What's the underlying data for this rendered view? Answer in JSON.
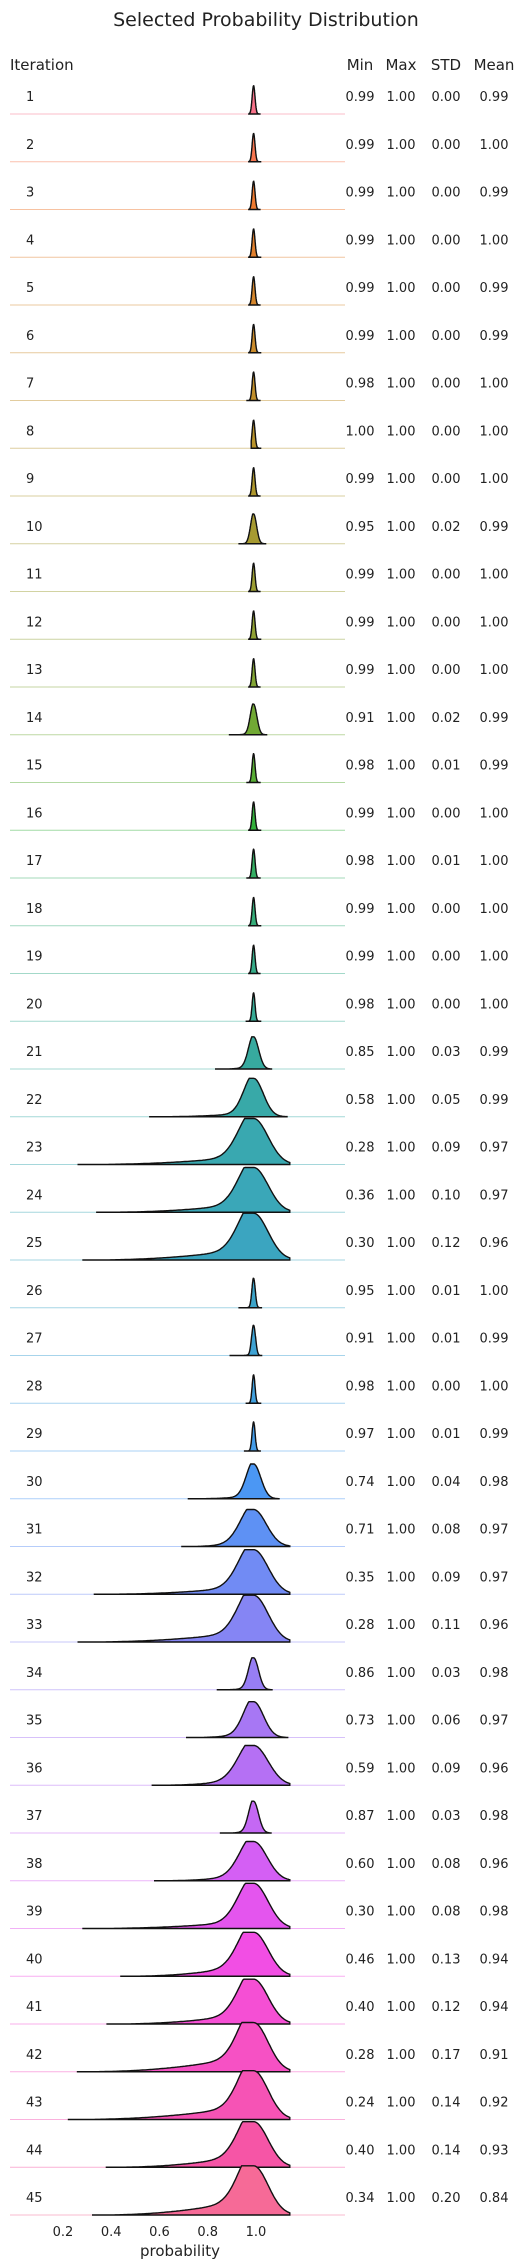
{
  "chart_data": {
    "type": "ridgeline",
    "title": "Selected Probability Distribution",
    "xlabel": "probability",
    "xlim": [
      0.0,
      1.2
    ],
    "xticks": [
      0.2,
      0.4,
      0.6,
      0.8,
      1.0
    ],
    "xtick_labels": [
      "0.2",
      "0.4",
      "0.6",
      "0.8",
      "1.0"
    ],
    "row_header": "Iteration",
    "stat_headers": [
      "Min",
      "Max",
      "STD",
      "Mean"
    ],
    "grid": false,
    "rows": [
      {
        "iteration": "1",
        "min": "0.99",
        "max": "1.00",
        "std": "0.00",
        "mean": "0.99",
        "color": "#f77189"
      },
      {
        "iteration": "2",
        "min": "0.99",
        "max": "1.00",
        "std": "0.00",
        "mean": "1.00",
        "color": "#f7754f"
      },
      {
        "iteration": "3",
        "min": "0.99",
        "max": "1.00",
        "std": "0.00",
        "mean": "0.99",
        "color": "#ee7a30"
      },
      {
        "iteration": "4",
        "min": "0.99",
        "max": "1.00",
        "std": "0.00",
        "mean": "1.00",
        "color": "#e1802e"
      },
      {
        "iteration": "5",
        "min": "0.99",
        "max": "1.00",
        "std": "0.00",
        "mean": "0.99",
        "color": "#d5862c"
      },
      {
        "iteration": "6",
        "min": "0.99",
        "max": "1.00",
        "std": "0.00",
        "mean": "0.99",
        "color": "#cb8b2a"
      },
      {
        "iteration": "7",
        "min": "0.98",
        "max": "1.00",
        "std": "0.00",
        "mean": "1.00",
        "color": "#c18f2b"
      },
      {
        "iteration": "8",
        "min": "1.00",
        "max": "1.00",
        "std": "0.00",
        "mean": "1.00",
        "color": "#b8932c"
      },
      {
        "iteration": "9",
        "min": "0.99",
        "max": "1.00",
        "std": "0.00",
        "mean": "1.00",
        "color": "#ae972d"
      },
      {
        "iteration": "10",
        "min": "0.95",
        "max": "1.00",
        "std": "0.02",
        "mean": "0.99",
        "color": "#a69a31"
      },
      {
        "iteration": "11",
        "min": "0.99",
        "max": "1.00",
        "std": "0.00",
        "mean": "1.00",
        "color": "#9c9e33"
      },
      {
        "iteration": "12",
        "min": "0.99",
        "max": "1.00",
        "std": "0.00",
        "mean": "1.00",
        "color": "#90a133"
      },
      {
        "iteration": "13",
        "min": "0.99",
        "max": "1.00",
        "std": "0.00",
        "mean": "1.00",
        "color": "#82a534"
      },
      {
        "iteration": "14",
        "min": "0.91",
        "max": "1.00",
        "std": "0.02",
        "mean": "0.99",
        "color": "#71a934"
      },
      {
        "iteration": "15",
        "min": "0.98",
        "max": "1.00",
        "std": "0.01",
        "mean": "0.99",
        "color": "#58ad34"
      },
      {
        "iteration": "16",
        "min": "0.99",
        "max": "1.00",
        "std": "0.00",
        "mean": "1.00",
        "color": "#33b03b"
      },
      {
        "iteration": "17",
        "min": "0.98",
        "max": "1.00",
        "std": "0.01",
        "mean": "1.00",
        "color": "#34ae63"
      },
      {
        "iteration": "18",
        "min": "0.99",
        "max": "1.00",
        "std": "0.00",
        "mean": "1.00",
        "color": "#35ad79"
      },
      {
        "iteration": "19",
        "min": "0.99",
        "max": "1.00",
        "std": "0.00",
        "mean": "1.00",
        "color": "#36ac89"
      },
      {
        "iteration": "20",
        "min": "0.98",
        "max": "1.00",
        "std": "0.00",
        "mean": "1.00",
        "color": "#37ab96"
      },
      {
        "iteration": "21",
        "min": "0.85",
        "max": "1.00",
        "std": "0.03",
        "mean": "0.99",
        "color": "#37aa9f"
      },
      {
        "iteration": "22",
        "min": "0.58",
        "max": "1.00",
        "std": "0.05",
        "mean": "0.99",
        "color": "#38a9a8"
      },
      {
        "iteration": "23",
        "min": "0.28",
        "max": "1.00",
        "std": "0.09",
        "mean": "0.97",
        "color": "#39a8b0"
      },
      {
        "iteration": "24",
        "min": "0.36",
        "max": "1.00",
        "std": "0.10",
        "mean": "0.97",
        "color": "#3aa7b8"
      },
      {
        "iteration": "25",
        "min": "0.30",
        "max": "1.00",
        "std": "0.12",
        "mean": "0.96",
        "color": "#3ba5c0"
      },
      {
        "iteration": "26",
        "min": "0.95",
        "max": "1.00",
        "std": "0.01",
        "mean": "1.00",
        "color": "#3ca4c9"
      },
      {
        "iteration": "27",
        "min": "0.91",
        "max": "1.00",
        "std": "0.01",
        "mean": "0.99",
        "color": "#3ea2d3"
      },
      {
        "iteration": "28",
        "min": "0.98",
        "max": "1.00",
        "std": "0.00",
        "mean": "1.00",
        "color": "#40a0de"
      },
      {
        "iteration": "29",
        "min": "0.97",
        "max": "1.00",
        "std": "0.01",
        "mean": "0.99",
        "color": "#439ce9"
      },
      {
        "iteration": "30",
        "min": "0.74",
        "max": "1.00",
        "std": "0.04",
        "mean": "0.98",
        "color": "#4b97f4"
      },
      {
        "iteration": "31",
        "min": "0.71",
        "max": "1.00",
        "std": "0.08",
        "mean": "0.97",
        "color": "#5e91f4"
      },
      {
        "iteration": "32",
        "min": "0.35",
        "max": "1.00",
        "std": "0.09",
        "mean": "0.97",
        "color": "#718bf4"
      },
      {
        "iteration": "33",
        "min": "0.28",
        "max": "1.00",
        "std": "0.11",
        "mean": "0.96",
        "color": "#8585f4"
      },
      {
        "iteration": "34",
        "min": "0.86",
        "max": "1.00",
        "std": "0.03",
        "mean": "0.98",
        "color": "#977ef4"
      },
      {
        "iteration": "35",
        "min": "0.73",
        "max": "1.00",
        "std": "0.06",
        "mean": "0.97",
        "color": "#a777f4"
      },
      {
        "iteration": "36",
        "min": "0.59",
        "max": "1.00",
        "std": "0.09",
        "mean": "0.96",
        "color": "#b570f4"
      },
      {
        "iteration": "37",
        "min": "0.87",
        "max": "1.00",
        "std": "0.03",
        "mean": "0.98",
        "color": "#c468f4"
      },
      {
        "iteration": "38",
        "min": "0.60",
        "max": "1.00",
        "std": "0.08",
        "mean": "0.96",
        "color": "#d45ff4"
      },
      {
        "iteration": "39",
        "min": "0.30",
        "max": "1.00",
        "std": "0.08",
        "mean": "0.98",
        "color": "#e455ee"
      },
      {
        "iteration": "40",
        "min": "0.46",
        "max": "1.00",
        "std": "0.13",
        "mean": "0.94",
        "color": "#f24ee4"
      },
      {
        "iteration": "41",
        "min": "0.40",
        "max": "1.00",
        "std": "0.12",
        "mean": "0.94",
        "color": "#f54fd4"
      },
      {
        "iteration": "42",
        "min": "0.28",
        "max": "1.00",
        "std": "0.17",
        "mean": "0.91",
        "color": "#f651c4"
      },
      {
        "iteration": "43",
        "min": "0.24",
        "max": "1.00",
        "std": "0.14",
        "mean": "0.92",
        "color": "#f653b5"
      },
      {
        "iteration": "44",
        "min": "0.40",
        "max": "1.00",
        "std": "0.14",
        "mean": "0.93",
        "color": "#f655a6"
      },
      {
        "iteration": "45",
        "min": "0.34",
        "max": "1.00",
        "std": "0.20",
        "mean": "0.84",
        "color": "#f66a97"
      }
    ]
  }
}
